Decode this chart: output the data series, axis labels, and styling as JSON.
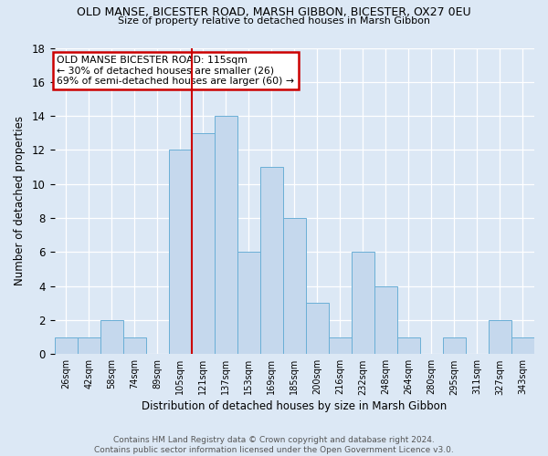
{
  "title": "OLD MANSE, BICESTER ROAD, MARSH GIBBON, BICESTER, OX27 0EU",
  "subtitle": "Size of property relative to detached houses in Marsh Gibbon",
  "xlabel": "Distribution of detached houses by size in Marsh Gibbon",
  "ylabel": "Number of detached properties",
  "bar_labels": [
    "26sqm",
    "42sqm",
    "58sqm",
    "74sqm",
    "89sqm",
    "105sqm",
    "121sqm",
    "137sqm",
    "153sqm",
    "169sqm",
    "185sqm",
    "200sqm",
    "216sqm",
    "232sqm",
    "248sqm",
    "264sqm",
    "280sqm",
    "295sqm",
    "311sqm",
    "327sqm",
    "343sqm"
  ],
  "bar_heights": [
    1,
    1,
    2,
    1,
    0,
    12,
    13,
    14,
    6,
    11,
    8,
    3,
    1,
    6,
    4,
    1,
    0,
    1,
    0,
    2,
    1
  ],
  "bar_color": "#c5d8ed",
  "bar_edgecolor": "#6aafd6",
  "vline_color": "#cc0000",
  "ylim": [
    0,
    18
  ],
  "yticks": [
    0,
    2,
    4,
    6,
    8,
    10,
    12,
    14,
    16,
    18
  ],
  "annotation_text": "OLD MANSE BICESTER ROAD: 115sqm\n← 30% of detached houses are smaller (26)\n69% of semi-detached houses are larger (60) →",
  "annotation_box_edgecolor": "#cc0000",
  "footer_text": "Contains HM Land Registry data © Crown copyright and database right 2024.\nContains public sector information licensed under the Open Government Licence v3.0.",
  "bg_color": "#dce8f5",
  "plot_bg_color": "#dce8f5"
}
